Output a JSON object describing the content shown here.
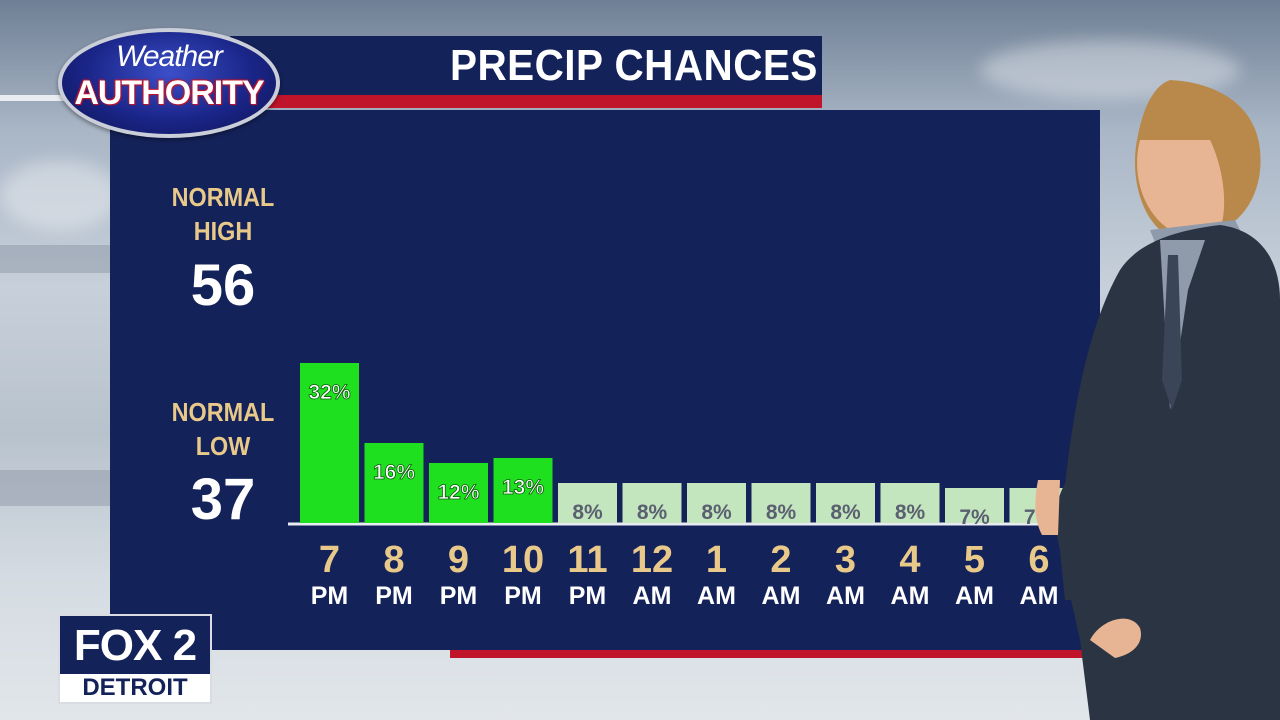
{
  "header": {
    "logo_line1": "Weather",
    "logo_line2": "AUTHORITY",
    "title": "PRECIP CHANCES"
  },
  "normals": {
    "high_label_1": "NORMAL",
    "high_label_2": "HIGH",
    "high_value": "56",
    "low_label_1": "NORMAL",
    "low_label_2": "LOW",
    "low_value": "37"
  },
  "station": {
    "name": "FOX 2",
    "city": "DETROIT"
  },
  "colors": {
    "board": "#14225a",
    "bar_high": "#1ee01e",
    "bar_low": "#c4e6be",
    "accent_red": "#c0142b",
    "label_tan": "#e9c98a"
  },
  "chart_data": {
    "type": "bar",
    "title": "PRECIP CHANCES",
    "categories": [
      "7 PM",
      "8 PM",
      "9 PM",
      "10 PM",
      "11 PM",
      "12 AM",
      "1 AM",
      "2 AM",
      "3 AM",
      "4 AM",
      "5 AM",
      "6 AM"
    ],
    "hours": [
      "7",
      "8",
      "9",
      "10",
      "11",
      "12",
      "1",
      "2",
      "3",
      "4",
      "5",
      "6"
    ],
    "periods": [
      "PM",
      "PM",
      "PM",
      "PM",
      "PM",
      "AM",
      "AM",
      "AM",
      "AM",
      "AM",
      "AM",
      "AM"
    ],
    "values": [
      32,
      16,
      12,
      13,
      8,
      8,
      8,
      8,
      8,
      8,
      7,
      7
    ],
    "labels": [
      "32%",
      "16%",
      "12%",
      "13%",
      "8%",
      "8%",
      "8%",
      "8%",
      "8%",
      "8%",
      "7%",
      "7%"
    ],
    "ylim": [
      0,
      32
    ],
    "grid": false,
    "legend": "none"
  }
}
